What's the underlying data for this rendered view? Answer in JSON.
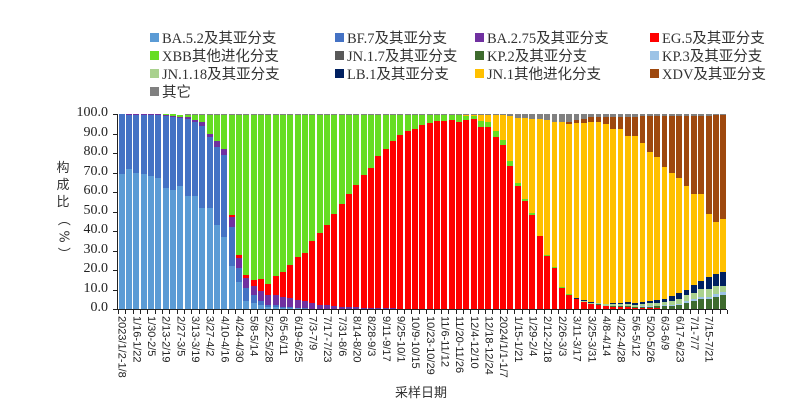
{
  "chart_data": {
    "type": "bar",
    "stacked": true,
    "title": "",
    "xlabel": "采样日期",
    "ylabel": "构成比（%）",
    "ylim": [
      0,
      100
    ],
    "yticks": [
      "0.0",
      "10.0",
      "20.0",
      "30.0",
      "40.0",
      "50.0",
      "60.0",
      "70.0",
      "80.0",
      "90.0",
      "100.0"
    ],
    "tick_labels": [
      "2023/1/2-1/8",
      "1/16-1/22",
      "1/30-2/5",
      "2/13-2/19",
      "2/27-3/5",
      "3/13-3/19",
      "3/27-4/2",
      "4/10-4/16",
      "4/24-4/30",
      "5/8-5/14",
      "5/22-5/28",
      "6/5-6/11",
      "6/19-6/25",
      "7/3-7/9",
      "7/17-7/23",
      "7/31-8/6",
      "8/14-8/20",
      "8/28-9/3",
      "9/11-9/17",
      "9/25-10/1",
      "10/9-10/15",
      "10/23-10/29",
      "11/6-11/12",
      "11/20-11/26",
      "12/4-12/10",
      "12/18-12/24",
      "2024/1/1-1/7",
      "1/15-1/21",
      "1/29-2/4",
      "2/12-2/18",
      "2/26-3/3",
      "3/11-3/17",
      "3/25-3/31",
      "4/8-4/14",
      "4/22-4/28",
      "5/6-5/12",
      "5/20-5/26",
      "6/3-6/9",
      "6/17-6/23",
      "7/1-7/7",
      "7/15-7/21"
    ],
    "legend": [
      {
        "name": "BA.5.2及其亚分支",
        "color": "#5B9BD5"
      },
      {
        "name": "BF.7及其亚分支",
        "color": "#4472C4"
      },
      {
        "name": "BA.2.75及其亚分支",
        "color": "#7030A0"
      },
      {
        "name": "EG.5及其亚分支",
        "color": "#FF0000"
      },
      {
        "name": "XBB其他进化分支",
        "color": "#66DD22"
      },
      {
        "name": "JN.1.7及其亚分支",
        "color": "#595959"
      },
      {
        "name": "KP.2及其亚分支",
        "color": "#3E6B2E"
      },
      {
        "name": "KP.3及其亚分支",
        "color": "#9DC3E6"
      },
      {
        "name": "JN.1.18及其亚分支",
        "color": "#A9D18E"
      },
      {
        "name": "LB.1及其亚分支",
        "color": "#002060"
      },
      {
        "name": "JN.1其他进化分支",
        "color": "#FFC000"
      },
      {
        "name": "XDV及其亚分支",
        "color": "#9E480E"
      },
      {
        "name": "其它",
        "color": "#808080"
      }
    ],
    "series_order": [
      "BA.5.2",
      "BF.7",
      "BA.2.75",
      "EG.5",
      "XBB",
      "JN.1.7",
      "KP.2",
      "KP.3",
      "JN.1.18",
      "LB.1",
      "JN.1other",
      "XDV",
      "other"
    ],
    "bars": [
      [
        69,
        31,
        0,
        0,
        0,
        0,
        0,
        0,
        0,
        0,
        0,
        0,
        0
      ],
      [
        72,
        28,
        0.3,
        0,
        0,
        0,
        0,
        0,
        0,
        0,
        0,
        0,
        0
      ],
      [
        70,
        29.5,
        0.5,
        0,
        0,
        0,
        0,
        0,
        0,
        0,
        0,
        0,
        0
      ],
      [
        69,
        30.5,
        0.5,
        0,
        0,
        0,
        0,
        0,
        0,
        0,
        0,
        0,
        0
      ],
      [
        68,
        31.5,
        0.5,
        0,
        0,
        0,
        0,
        0,
        0,
        0,
        0,
        0,
        0
      ],
      [
        67,
        32.5,
        0.5,
        0,
        0,
        0,
        0,
        0,
        0,
        0,
        0,
        0,
        0
      ],
      [
        62,
        37,
        0.3,
        0,
        0.7,
        0,
        0,
        0,
        0,
        0,
        0,
        0,
        0
      ],
      [
        61,
        37.5,
        0.3,
        0,
        1.2,
        0,
        0,
        0,
        0,
        0,
        0,
        0,
        0
      ],
      [
        63,
        35,
        0.5,
        0,
        1,
        0,
        0,
        0,
        0,
        0,
        0,
        0,
        0
      ],
      [
        58,
        39.5,
        1,
        0,
        1,
        0,
        0,
        0,
        0,
        0,
        0,
        0,
        0.5
      ],
      [
        58,
        38,
        1,
        0,
        2.5,
        0,
        0,
        0,
        0,
        0,
        0,
        0,
        0.5
      ],
      [
        52,
        42,
        2,
        0,
        3.5,
        0,
        0,
        0,
        0,
        0,
        0,
        0,
        0.5
      ],
      [
        52,
        36,
        2,
        0,
        9.5,
        0,
        0,
        0,
        0,
        0,
        0,
        0,
        0.5
      ],
      [
        43,
        40,
        3,
        0,
        13.5,
        0,
        0,
        0,
        0,
        0,
        0,
        0,
        0.5
      ],
      [
        37,
        42,
        3,
        0,
        17.5,
        0,
        0,
        0,
        0,
        0,
        0,
        0,
        0.5
      ],
      [
        22,
        20,
        5,
        1,
        51.5,
        0,
        0,
        0,
        0,
        0,
        0,
        0,
        0.5
      ],
      [
        14,
        7,
        5,
        1.5,
        72,
        0,
        0,
        0,
        0,
        0,
        0,
        0,
        0.5
      ],
      [
        4,
        7,
        5,
        1.5,
        82,
        0,
        0,
        0,
        0,
        0,
        0,
        0,
        0.5
      ],
      [
        3,
        4,
        5,
        3,
        84.5,
        0,
        0,
        0,
        0,
        0,
        0,
        0,
        0.5
      ],
      [
        2,
        2,
        5,
        6.5,
        84,
        0,
        0,
        0,
        0,
        0,
        0,
        0,
        0.5
      ],
      [
        1,
        1,
        5,
        6,
        86.5,
        0,
        0,
        0,
        0,
        0,
        0,
        0,
        0.5
      ],
      [
        1,
        1,
        5,
        10,
        82.5,
        0,
        0,
        0,
        0,
        0,
        0,
        0,
        0.5
      ],
      [
        0.5,
        0.5,
        5,
        13,
        80.5,
        0,
        0,
        0,
        0,
        0,
        0,
        0,
        0.5
      ],
      [
        0.5,
        0.5,
        4.5,
        17,
        77,
        0,
        0,
        0,
        0,
        0,
        0,
        0,
        0.5
      ],
      [
        0.3,
        0.3,
        4,
        22,
        73,
        0,
        0,
        0,
        0,
        0,
        0,
        0,
        0.4
      ],
      [
        0.2,
        0.2,
        3.5,
        25,
        70.7,
        0,
        0,
        0,
        0,
        0,
        0,
        0,
        0.4
      ],
      [
        0,
        0,
        3,
        32,
        64.6,
        0,
        0,
        0,
        0,
        0,
        0,
        0,
        0.4
      ],
      [
        0,
        0,
        2,
        37,
        60.6,
        0,
        0,
        0,
        0,
        0,
        0,
        0,
        0.4
      ],
      [
        0,
        0,
        2,
        41,
        56.6,
        0,
        0,
        0,
        0,
        0,
        0,
        0,
        0.4
      ],
      [
        0,
        0,
        1.5,
        47,
        51.1,
        0,
        0,
        0,
        0,
        0,
        0,
        0,
        0.4
      ],
      [
        0,
        0,
        1,
        53,
        45.6,
        0,
        0,
        0,
        0,
        0,
        0,
        0,
        0.4
      ],
      [
        0,
        0,
        1,
        58,
        40.6,
        0,
        0,
        0,
        0,
        0,
        0,
        0,
        0.4
      ],
      [
        0,
        0,
        0.8,
        63,
        35.8,
        0,
        0,
        0,
        0,
        0,
        0,
        0,
        0.4
      ],
      [
        0,
        0,
        0.6,
        68,
        31,
        0,
        0,
        0,
        0,
        0,
        0,
        0,
        0.4
      ],
      [
        0,
        0,
        0.5,
        72,
        27,
        0,
        0,
        0,
        0,
        0,
        0,
        0,
        0.5
      ],
      [
        0,
        0,
        0.4,
        78,
        21.1,
        0,
        0,
        0,
        0,
        0,
        0,
        0,
        0.5
      ],
      [
        0,
        0,
        0.3,
        82,
        17.2,
        0,
        0,
        0,
        0,
        0,
        0,
        0,
        0.5
      ],
      [
        0,
        0,
        0.3,
        86,
        13.2,
        0,
        0,
        0,
        0,
        0,
        0,
        0,
        0.5
      ],
      [
        0,
        0,
        0.2,
        89,
        10.3,
        0,
        0,
        0,
        0,
        0,
        0,
        0,
        0.5
      ],
      [
        0,
        0,
        0.2,
        91,
        8.3,
        0,
        0,
        0,
        0,
        0,
        0,
        0,
        0.5
      ],
      [
        0,
        0,
        0.2,
        92,
        7.3,
        0,
        0,
        0,
        0,
        0,
        0,
        0,
        0.5
      ],
      [
        0,
        0,
        0.2,
        94,
        5.3,
        0,
        0,
        0,
        0,
        0,
        0,
        0,
        0.5
      ],
      [
        0,
        0,
        0.2,
        95,
        4.3,
        0,
        0,
        0,
        0,
        0,
        0,
        0,
        0.5
      ],
      [
        0,
        0,
        0.2,
        96,
        3.3,
        0,
        0,
        0,
        0,
        0,
        0,
        0,
        0.5
      ],
      [
        0,
        0,
        0.2,
        96,
        3.3,
        0,
        0,
        0,
        0,
        0,
        0,
        0,
        0.5
      ],
      [
        0,
        0,
        0.2,
        96.5,
        2.8,
        0,
        0,
        0,
        0,
        0,
        0,
        0,
        0.5
      ],
      [
        0,
        0,
        0.2,
        95.5,
        3.8,
        0,
        0,
        0,
        0,
        0,
        0,
        0,
        0.5
      ],
      [
        0,
        0,
        0.2,
        96.5,
        2.5,
        0,
        0,
        0,
        0,
        0,
        0.3,
        0,
        0.5
      ],
      [
        0,
        0,
        0.2,
        97,
        1.8,
        0,
        0,
        0,
        0,
        0,
        0.5,
        0,
        0.5
      ],
      [
        0,
        0,
        0.2,
        93,
        3,
        0,
        0,
        0,
        0,
        0,
        3.3,
        0,
        0.5
      ],
      [
        0,
        0,
        0.2,
        93,
        2.5,
        0,
        0,
        0,
        0,
        0,
        3.8,
        0,
        0.5
      ],
      [
        0,
        0,
        0.2,
        88,
        3,
        0,
        0,
        0,
        0,
        0,
        8.3,
        0,
        0.5
      ],
      [
        0,
        0,
        0.2,
        84,
        2.5,
        0,
        0,
        0,
        0,
        0,
        12.8,
        0,
        0.5
      ],
      [
        0,
        0,
        0.2,
        73,
        2.5,
        0,
        0,
        0,
        0,
        0,
        23.3,
        0,
        1
      ],
      [
        0,
        0,
        0.2,
        63,
        1.5,
        0,
        0,
        0,
        0,
        0,
        33.3,
        0,
        2
      ],
      [
        0,
        0,
        0.2,
        55,
        1,
        0,
        0,
        0,
        0,
        0,
        41.8,
        0,
        2
      ],
      [
        0,
        0,
        0.2,
        48,
        0.8,
        0,
        0,
        0,
        0,
        0,
        48.5,
        0,
        2.5
      ],
      [
        0,
        0,
        0.2,
        37,
        0.5,
        0,
        0,
        0,
        0,
        0,
        59.8,
        0,
        2.5
      ],
      [
        0,
        0,
        0,
        27,
        0.5,
        0,
        0,
        0,
        0,
        0,
        69.5,
        0,
        3
      ],
      [
        0,
        0,
        0,
        21,
        0.5,
        0,
        0,
        0,
        0,
        0,
        74.5,
        0,
        4
      ],
      [
        0,
        0,
        0,
        11,
        0.5,
        0,
        0,
        0,
        0,
        0,
        84.5,
        0,
        4
      ],
      [
        0,
        0,
        0,
        7,
        0.5,
        0,
        0,
        0,
        0,
        0,
        87.5,
        1,
        4
      ],
      [
        0,
        0,
        0,
        5,
        0.3,
        0,
        0,
        0,
        0,
        0.3,
        89.9,
        1.5,
        3
      ],
      [
        0,
        0,
        0,
        3.5,
        0.2,
        0,
        0,
        0,
        0.5,
        0.3,
        91,
        2,
        2.5
      ],
      [
        0,
        0,
        0,
        2.5,
        0.2,
        0,
        0,
        0,
        0.5,
        0.3,
        92.5,
        2.5,
        1.5
      ],
      [
        0,
        0,
        0,
        2,
        0.2,
        0,
        0.2,
        0,
        0.5,
        0.3,
        92.8,
        2.5,
        1.5
      ],
      [
        0,
        0,
        0,
        1.5,
        0,
        0,
        0.2,
        0,
        0.8,
        0.3,
        92.2,
        3.5,
        1.5
      ],
      [
        0,
        0,
        0,
        1,
        0,
        0,
        0.5,
        0,
        1,
        0.5,
        89.5,
        6,
        1.5
      ],
      [
        0,
        0,
        0,
        1,
        0,
        0,
        0.5,
        0.2,
        1,
        0.5,
        89.3,
        6,
        1.5
      ],
      [
        0,
        0,
        0,
        0.8,
        0,
        0,
        0.5,
        0.2,
        1.2,
        0.8,
        85.5,
        9.5,
        1.5
      ],
      [
        0,
        0,
        0,
        0.5,
        0,
        0,
        0.5,
        0.2,
        1,
        0.8,
        85.5,
        10,
        1.5
      ],
      [
        0,
        0,
        0,
        0.5,
        0,
        0,
        0.7,
        0.3,
        1.2,
        1,
        81.3,
        14,
        1
      ],
      [
        0,
        0,
        0,
        0.3,
        0,
        0,
        0.8,
        0.3,
        1.5,
        1,
        76.6,
        18.5,
        1
      ],
      [
        0,
        0,
        0,
        0.3,
        0,
        0,
        1,
        0.3,
        1.5,
        1.5,
        73.4,
        21,
        1
      ],
      [
        0,
        0,
        0,
        0.2,
        0,
        0,
        1.2,
        0.5,
        1.5,
        1.5,
        68.1,
        26,
        1
      ],
      [
        0,
        0,
        0,
        0.2,
        0,
        0,
        1.5,
        0.5,
        2,
        2.5,
        63.3,
        29,
        1
      ],
      [
        0,
        0,
        0,
        0.2,
        0,
        0,
        2,
        0.5,
        2.5,
        3,
        58.8,
        32,
        1
      ],
      [
        0,
        0,
        0,
        0.2,
        0,
        0,
        3,
        0.8,
        3,
        3,
        53,
        36,
        1
      ],
      [
        0,
        0,
        0,
        0.2,
        0,
        0,
        4,
        1,
        3,
        4,
        46.8,
        40,
        1
      ],
      [
        0,
        0,
        0,
        0.2,
        0,
        0,
        5,
        1,
        4,
        4,
        44.8,
        40,
        1
      ],
      [
        0,
        0,
        0,
        0.2,
        0,
        0,
        5,
        1,
        4,
        6,
        32.8,
        50,
        1
      ],
      [
        0,
        0,
        0,
        0.2,
        0,
        0,
        6,
        1.5,
        4,
        6.5,
        26.3,
        55,
        0.5
      ],
      [
        0,
        0,
        0,
        0.2,
        0,
        0,
        7,
        1.5,
        3,
        7.5,
        26.8,
        53.5,
        0.5
      ]
    ]
  }
}
